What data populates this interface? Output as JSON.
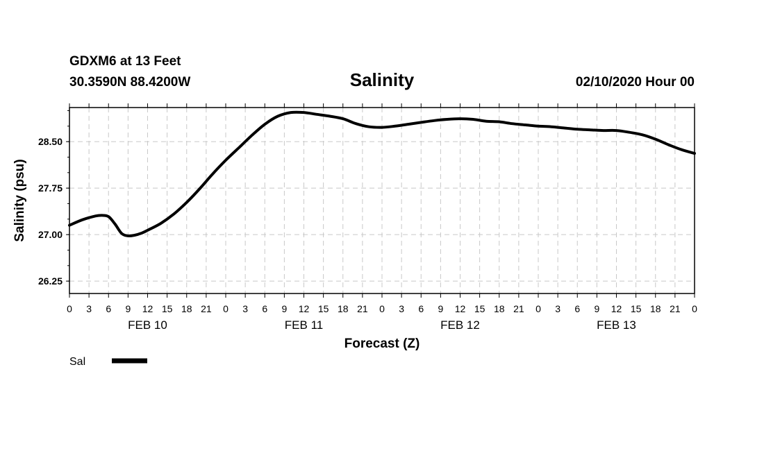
{
  "header": {
    "station_line": "GDXM6 at 13 Feet",
    "coords_line": "30.3590N 88.4200W",
    "datetime_line": "02/10/2020 Hour 00"
  },
  "chart_data": {
    "type": "line",
    "title": "Salinity",
    "xlabel": "Forecast (Z)",
    "ylabel": "Salinity (psu)",
    "xlim": [
      0,
      96
    ],
    "ylim": [
      26.05,
      29.05
    ],
    "yticks": [
      26.25,
      27.0,
      27.75,
      28.5
    ],
    "ytick_labels": [
      "26.25",
      "27.00",
      "27.75",
      "28.50"
    ],
    "grid": true,
    "xtick_step_hours": 3,
    "xtick_labels": [
      "0",
      "3",
      "6",
      "9",
      "12",
      "15",
      "18",
      "21",
      "0",
      "3",
      "6",
      "9",
      "12",
      "15",
      "18",
      "21",
      "0",
      "3",
      "6",
      "9",
      "12",
      "15",
      "18",
      "21",
      "0",
      "3",
      "6",
      "9",
      "12",
      "15",
      "18",
      "21",
      "0"
    ],
    "day_labels": [
      {
        "label": "FEB 10",
        "center_hour": 12
      },
      {
        "label": "FEB 11",
        "center_hour": 36
      },
      {
        "label": "FEB 12",
        "center_hour": 60
      },
      {
        "label": "FEB 13",
        "center_hour": 84
      }
    ],
    "series": [
      {
        "name": "Sal",
        "color": "#000000",
        "x": [
          0,
          2,
          4,
          5,
          6,
          7,
          8,
          9,
          10,
          11,
          12,
          14,
          16,
          18,
          20,
          22,
          24,
          26,
          28,
          30,
          32,
          34,
          36,
          38,
          40,
          42,
          44,
          46,
          48,
          50,
          52,
          54,
          56,
          58,
          60,
          62,
          64,
          66,
          68,
          70,
          72,
          74,
          76,
          78,
          80,
          82,
          84,
          86,
          88,
          90,
          92,
          94,
          96
        ],
        "y": [
          27.15,
          27.24,
          27.3,
          27.31,
          27.29,
          27.17,
          27.02,
          26.98,
          26.99,
          27.02,
          27.07,
          27.18,
          27.33,
          27.52,
          27.74,
          27.98,
          28.2,
          28.4,
          28.6,
          28.78,
          28.91,
          28.97,
          28.97,
          28.94,
          28.91,
          28.87,
          28.79,
          28.74,
          28.73,
          28.75,
          28.78,
          28.81,
          28.84,
          28.86,
          28.87,
          28.86,
          28.83,
          28.82,
          28.79,
          28.77,
          28.75,
          28.74,
          28.72,
          28.7,
          28.69,
          28.68,
          28.68,
          28.65,
          28.61,
          28.54,
          28.45,
          28.37,
          28.31
        ]
      }
    ],
    "legend": [
      {
        "label": "Sal",
        "position": "bottom-left"
      }
    ]
  }
}
